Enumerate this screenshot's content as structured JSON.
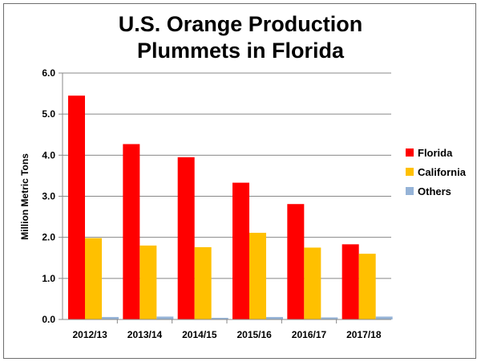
{
  "chart_data": {
    "type": "bar",
    "title_lines": [
      "U.S. Orange Production",
      "Plummets in Florida"
    ],
    "ylabel": "Million Metric Tons",
    "xlabel": "",
    "categories": [
      "2012/13",
      "2013/14",
      "2014/15",
      "2015/16",
      "2016/17",
      "2017/18"
    ],
    "series": [
      {
        "name": "Florida",
        "color": "#ff0000",
        "values": [
          5.45,
          4.27,
          3.95,
          3.33,
          2.81,
          1.83
        ]
      },
      {
        "name": "California",
        "color": "#ffc000",
        "values": [
          1.98,
          1.8,
          1.76,
          2.11,
          1.75,
          1.6
        ]
      },
      {
        "name": "Others",
        "color": "#95b3d7",
        "values": [
          0.06,
          0.07,
          0.04,
          0.06,
          0.05,
          0.07
        ]
      }
    ],
    "ylim": [
      0,
      6
    ],
    "yticks": [
      "0.0",
      "1.0",
      "2.0",
      "3.0",
      "4.0",
      "5.0",
      "6.0"
    ],
    "grid": true,
    "legend_position": "right"
  }
}
